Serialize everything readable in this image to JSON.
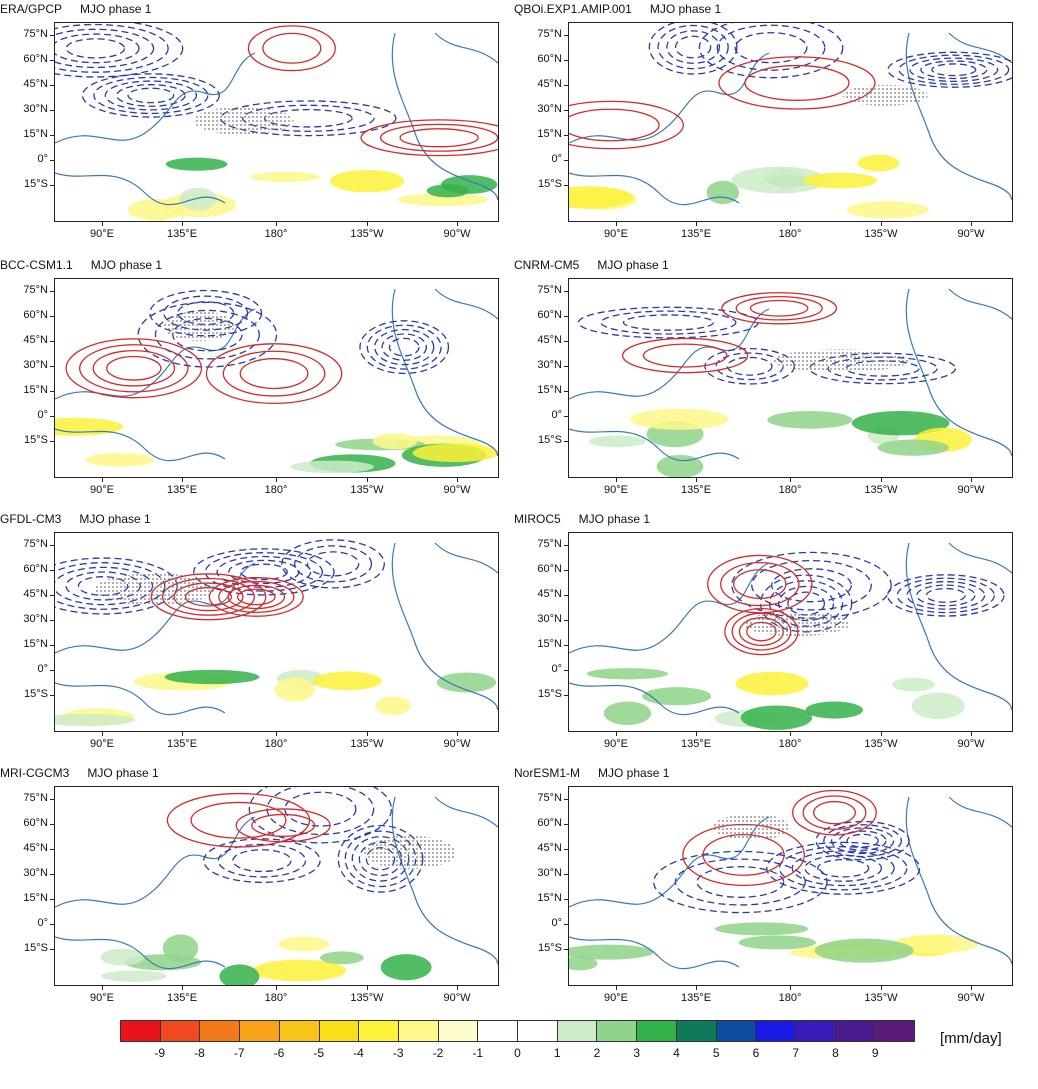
{
  "panels": [
    {
      "model": "ERA/GPCP",
      "phase": "MJO phase 1"
    },
    {
      "model": "QBOi.EXP1.AMIP.001",
      "phase": "MJO phase 1"
    },
    {
      "model": "BCC-CSM1.1",
      "phase": "MJO phase 1"
    },
    {
      "model": "CNRM-CM5",
      "phase": "MJO phase 1"
    },
    {
      "model": "GFDL-CM3",
      "phase": "MJO phase 1"
    },
    {
      "model": "MIROC5",
      "phase": "MJO phase 1"
    },
    {
      "model": "MRI-CGCM3",
      "phase": "MJO phase 1"
    },
    {
      "model": "NorESM1-M",
      "phase": "MJO phase 1"
    }
  ],
  "lat_labels": [
    "75°N",
    "60°N",
    "45°N",
    "30°N",
    "15°N",
    "0°",
    "15°S"
  ],
  "lon_labels": [
    "90°E",
    "135°E",
    "180°",
    "135°W",
    "90°W"
  ],
  "colorbar": {
    "labels": [
      "-9",
      "-8",
      "-7",
      "-6",
      "-5",
      "-4",
      "-3",
      "-2",
      "-1",
      "0",
      "1",
      "2",
      "3",
      "4",
      "5",
      "6",
      "7",
      "8",
      "9"
    ],
    "colors": [
      "#e8141c",
      "#f04a1e",
      "#f37a1a",
      "#f7a21a",
      "#f9c41a",
      "#f7e01a",
      "#fbf23a",
      "#fdf88a",
      "#fdfccc",
      "#ffffff",
      "#ffffff",
      "#cdebc8",
      "#8fd48a",
      "#34b24a",
      "#0f7a5a",
      "#0d4ea0",
      "#1a1ae6",
      "#3a1ab8",
      "#4a1a8e",
      "#5a1a7a"
    ],
    "units": "[mm/day]"
  },
  "legend_colors": {
    "positive_contour": "#d42a2a",
    "negative_contour": "#2a3aa8",
    "coast": "#3a7ab8"
  }
}
